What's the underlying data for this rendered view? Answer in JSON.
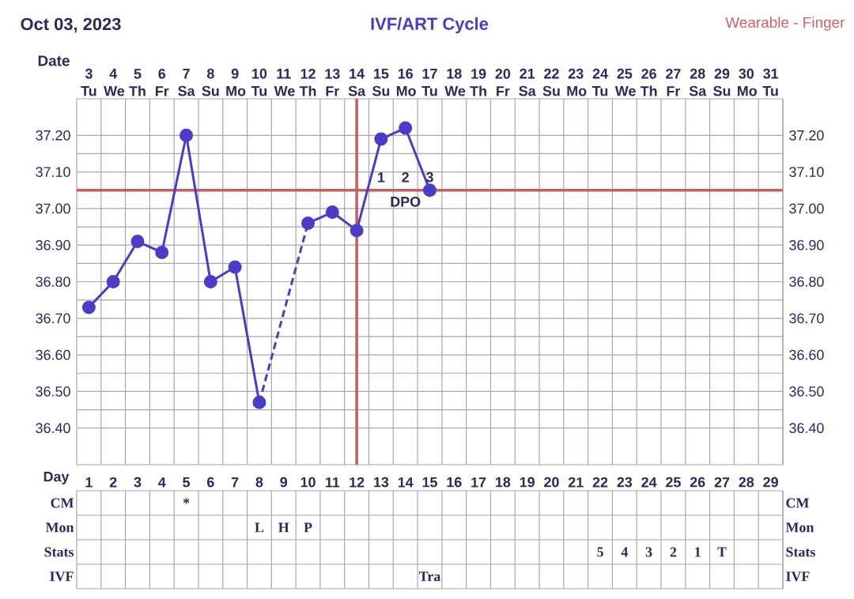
{
  "chart_data": [
    {
      "type": "line",
      "title": "IVF/ART Cycle",
      "subtitle": "Oct 03, 2023",
      "xlabel": "Date",
      "annotations": [
        "Wearable - Finger",
        {
          "text": "1",
          "x": 15,
          "y": 37.05
        },
        {
          "text": "2",
          "x": 16,
          "y": 37.05
        },
        {
          "text": "3",
          "x": 17,
          "y": 37.05
        },
        "DPO"
      ],
      "x": [
        3,
        4,
        5,
        6,
        7,
        8,
        9,
        10,
        11,
        12,
        13,
        14,
        15,
        16,
        17
      ],
      "series": [
        {
          "color": "#4a3cc8",
          "marker": "circle",
          "line_style": "solid",
          "values": [
            36.73,
            36.8,
            36.91,
            36.88,
            37.2,
            36.8,
            36.84,
            36.47,
            null,
            36.96,
            36.99,
            36.94,
            37.19,
            37.22,
            37.05
          ]
        },
        {
          "color": "#4c3ec9",
          "marker": "none",
          "line_style": "dashed",
          "x": [
            10,
            12
          ],
          "values": [
            36.47,
            36.96
          ]
        }
      ],
      "xlim": [
        2.5,
        31.5
      ],
      "xticks": [
        {
          "value": 3,
          "label": "3 Tu"
        },
        {
          "value": 4,
          "label": "4 We"
        },
        {
          "value": 5,
          "label": "5 Th"
        },
        {
          "value": 6,
          "label": "6 Fr"
        },
        {
          "value": 7,
          "label": "7 Sa"
        },
        {
          "value": 8,
          "label": "8 Su"
        },
        {
          "value": 9,
          "label": "9 Mo"
        },
        {
          "value": 10,
          "label": "10 Tu"
        },
        {
          "value": 11,
          "label": "11 We"
        },
        {
          "value": 12,
          "label": "12 Th"
        },
        {
          "value": 13,
          "label": "13 Fr"
        },
        {
          "value": 14,
          "label": "14 Sa"
        },
        {
          "value": 15,
          "label": "15 Su"
        },
        {
          "value": 16,
          "label": "16 Mo"
        },
        {
          "value": 17,
          "label": "17 Tu"
        },
        {
          "value": 18,
          "label": "18 We"
        },
        {
          "value": 19,
          "label": "19 Th"
        },
        {
          "value": 20,
          "label": "20 Fr"
        },
        {
          "value": 21,
          "label": "21 Sa"
        },
        {
          "value": 22,
          "label": "22 Su"
        },
        {
          "value": 23,
          "label": "23 Mo"
        },
        {
          "value": 24,
          "label": "24 Tu"
        },
        {
          "value": 25,
          "label": "25 We"
        },
        {
          "value": 26,
          "label": "26 Th"
        },
        {
          "value": 27,
          "label": "27 Fr"
        },
        {
          "value": 28,
          "label": "28 Sa"
        },
        {
          "value": 29,
          "label": "29 Su"
        },
        {
          "value": 30,
          "label": "30 Mo"
        },
        {
          "value": 31,
          "label": "31 Tu"
        }
      ],
      "ylim": [
        36.3,
        37.3
      ],
      "yticks": [
        {
          "value": 36.4,
          "label": "36.40"
        },
        {
          "value": 36.5,
          "label": "36.50"
        },
        {
          "value": 36.6,
          "label": "36.60"
        },
        {
          "value": 36.7,
          "label": "36.70"
        },
        {
          "value": 36.8,
          "label": "36.80"
        },
        {
          "value": 36.9,
          "label": "36.90"
        },
        {
          "value": 37.0,
          "label": "37.00"
        },
        {
          "value": 37.1,
          "label": "37.10"
        },
        {
          "value": 37.2,
          "label": "37.20"
        }
      ],
      "y2lim": [
        36.3,
        37.3
      ],
      "y2ticks": [
        {
          "value": 36.4,
          "label": "36.40"
        },
        {
          "value": 36.5,
          "label": "36.50"
        },
        {
          "value": 36.6,
          "label": "36.60"
        },
        {
          "value": 36.7,
          "label": "36.70"
        },
        {
          "value": 36.8,
          "label": "36.80"
        },
        {
          "value": 36.9,
          "label": "36.90"
        },
        {
          "value": 37.0,
          "label": "37.00"
        },
        {
          "value": 37.1,
          "label": "37.10"
        },
        {
          "value": 37.2,
          "label": "37.20"
        }
      ],
      "grid": true,
      "ref_lines": [
        {
          "axis": "y",
          "value": 37.05,
          "color": "#c95d5e"
        },
        {
          "axis": "x",
          "value": 14,
          "color": "#c95d5e"
        }
      ]
    },
    {
      "type": "heatmap",
      "xlabel": "Day",
      "categories": [
        "1",
        "2",
        "3",
        "4",
        "5",
        "6",
        "7",
        "8",
        "9",
        "10",
        "11",
        "12",
        "13",
        "14",
        "15",
        "16",
        "17",
        "18",
        "19",
        "20",
        "21",
        "22",
        "23",
        "24",
        "25",
        "26",
        "27",
        "28",
        "29"
      ],
      "y_categories": [
        "CM",
        "Mon",
        "Stats",
        "IVF"
      ],
      "y2_categories": [
        "CM",
        "Mon",
        "Stats",
        "IVF"
      ],
      "cells": [
        [
          null,
          null,
          null,
          null,
          null,
          null,
          null,
          null,
          null,
          null,
          null,
          null,
          null,
          null,
          null,
          null,
          null,
          null,
          null,
          null,
          null,
          null,
          null,
          null,
          null,
          null,
          null,
          null,
          null
        ],
        [
          null,
          null,
          null,
          null,
          null,
          null,
          null,
          null,
          null,
          null,
          null,
          null,
          null,
          null,
          null,
          null,
          null,
          null,
          null,
          null,
          null,
          null,
          null,
          null,
          null,
          null,
          null,
          null,
          null
        ],
        [
          null,
          null,
          null,
          null,
          null,
          null,
          null,
          null,
          null,
          null,
          null,
          null,
          null,
          null,
          null,
          null,
          null,
          null,
          null,
          null,
          null,
          null,
          null,
          null,
          null,
          null,
          null,
          null,
          null
        ],
        [
          null,
          null,
          null,
          null,
          null,
          null,
          null,
          null,
          null,
          null,
          null,
          null,
          null,
          null,
          null,
          null,
          null,
          null,
          null,
          null,
          null,
          null,
          null,
          null,
          null,
          null,
          null,
          null,
          null
        ]
      ],
      "cell_labels": [
        [
          null,
          null,
          null,
          null,
          "*",
          null,
          null,
          null,
          null,
          null,
          null,
          null,
          null,
          null,
          null,
          null,
          null,
          null,
          null,
          null,
          null,
          null,
          null,
          null,
          null,
          null,
          null,
          null,
          null
        ],
        [
          null,
          null,
          null,
          null,
          null,
          null,
          null,
          "L",
          "H",
          "P",
          null,
          null,
          null,
          null,
          null,
          null,
          null,
          null,
          null,
          null,
          null,
          null,
          null,
          null,
          null,
          null,
          null,
          null,
          null
        ],
        [
          null,
          null,
          null,
          null,
          null,
          null,
          null,
          null,
          null,
          null,
          null,
          null,
          null,
          null,
          null,
          null,
          null,
          null,
          null,
          null,
          null,
          "5",
          "4",
          "3",
          "2",
          "1",
          "T",
          null,
          null
        ],
        [
          null,
          null,
          null,
          null,
          null,
          null,
          null,
          null,
          null,
          null,
          null,
          null,
          null,
          null,
          "Tra",
          null,
          null,
          null,
          null,
          null,
          null,
          null,
          null,
          null,
          null,
          null,
          null,
          null,
          null
        ]
      ]
    }
  ]
}
